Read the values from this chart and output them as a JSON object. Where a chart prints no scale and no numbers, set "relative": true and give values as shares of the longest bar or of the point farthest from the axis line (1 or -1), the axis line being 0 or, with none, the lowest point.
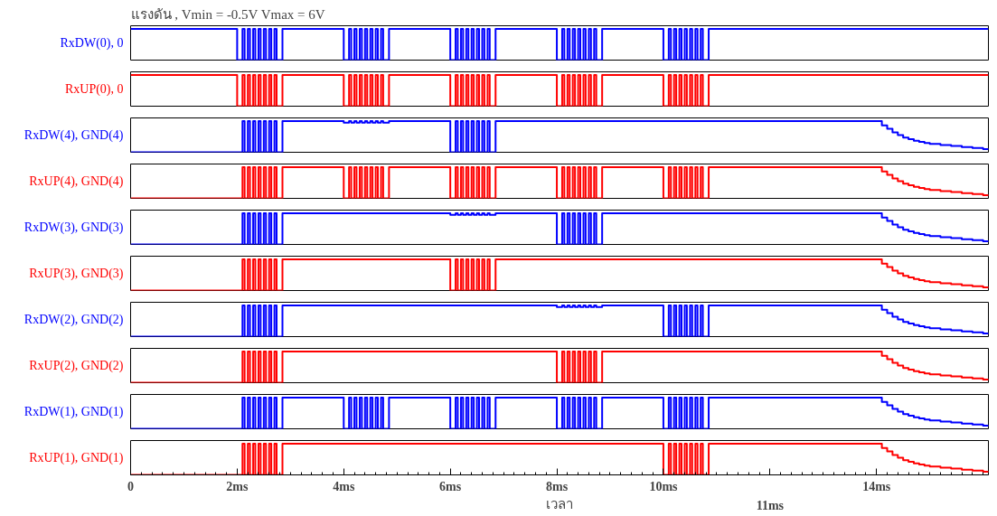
{
  "chart_data": [
    {
      "type": "step",
      "title": "แรงดัน , Vmin = -0.5V  Vmax = 6V",
      "relative": true,
      "xlim": [
        0,
        16.1
      ],
      "tick_labels": false,
      "grid": false,
      "line_style": "solid",
      "marker": "none",
      "series": [
        {
          "name": "RxDW(0), 0",
          "color": "#0000ff",
          "x": [
            0,
            2,
            2.1,
            2.14,
            2.2,
            2.24,
            2.3,
            2.34,
            2.4,
            2.44,
            2.5,
            2.54,
            2.6,
            2.64,
            2.7,
            2.74,
            2.85,
            4,
            4.1,
            4.14,
            4.2,
            4.24,
            4.3,
            4.34,
            4.4,
            4.44,
            4.5,
            4.54,
            4.6,
            4.64,
            4.7,
            4.74,
            4.85,
            6,
            6.1,
            6.14,
            6.2,
            6.24,
            6.3,
            6.34,
            6.4,
            6.44,
            6.5,
            6.54,
            6.6,
            6.64,
            6.7,
            6.74,
            6.85,
            8,
            8.1,
            8.14,
            8.2,
            8.24,
            8.3,
            8.34,
            8.4,
            8.44,
            8.5,
            8.54,
            8.6,
            8.64,
            8.7,
            8.74,
            8.85,
            10,
            10.1,
            10.14,
            10.2,
            10.24,
            10.3,
            10.34,
            10.4,
            10.44,
            10.5,
            10.54,
            10.6,
            10.64,
            10.7,
            10.74,
            10.85,
            16.1
          ],
          "values": [
            1,
            0,
            1,
            0,
            1,
            0,
            1,
            0,
            1,
            0,
            1,
            0,
            1,
            0,
            1,
            0,
            1,
            0,
            1,
            0,
            1,
            0,
            1,
            0,
            1,
            0,
            1,
            0,
            1,
            0,
            1,
            0,
            1,
            0,
            1,
            0,
            1,
            0,
            1,
            0,
            1,
            0,
            1,
            0,
            1,
            0,
            1,
            0,
            1,
            0,
            1,
            0,
            1,
            0,
            1,
            0,
            1,
            0,
            1,
            0,
            1,
            0,
            1,
            0,
            1,
            0,
            1,
            0,
            1,
            0,
            1,
            0,
            1,
            0,
            1,
            0,
            1,
            0,
            1,
            0,
            1,
            1
          ]
        }
      ]
    },
    {
      "type": "step",
      "relative": true,
      "xlim": [
        0,
        16.1
      ],
      "tick_labels": false,
      "grid": false,
      "line_style": "solid",
      "marker": "none",
      "series": [
        {
          "name": "RxUP(0), 0",
          "color": "#ff0000",
          "x": [
            0,
            2,
            2.1,
            2.14,
            2.2,
            2.24,
            2.3,
            2.34,
            2.4,
            2.44,
            2.5,
            2.54,
            2.6,
            2.64,
            2.7,
            2.74,
            2.85,
            4,
            4.1,
            4.14,
            4.2,
            4.24,
            4.3,
            4.34,
            4.4,
            4.44,
            4.5,
            4.54,
            4.6,
            4.64,
            4.7,
            4.74,
            4.85,
            6,
            6.1,
            6.14,
            6.2,
            6.24,
            6.3,
            6.34,
            6.4,
            6.44,
            6.5,
            6.54,
            6.6,
            6.64,
            6.7,
            6.74,
            6.85,
            8,
            8.1,
            8.14,
            8.2,
            8.24,
            8.3,
            8.34,
            8.4,
            8.44,
            8.5,
            8.54,
            8.6,
            8.64,
            8.7,
            8.74,
            8.85,
            10,
            10.1,
            10.14,
            10.2,
            10.24,
            10.3,
            10.34,
            10.4,
            10.44,
            10.5,
            10.54,
            10.6,
            10.64,
            10.7,
            10.74,
            10.85,
            16.1
          ],
          "values": [
            1,
            0,
            1,
            0,
            1,
            0,
            1,
            0,
            1,
            0,
            1,
            0,
            1,
            0,
            1,
            0,
            1,
            0,
            1,
            0,
            1,
            0,
            1,
            0,
            1,
            0,
            1,
            0,
            1,
            0,
            1,
            0,
            1,
            0,
            1,
            0,
            1,
            0,
            1,
            0,
            1,
            0,
            1,
            0,
            1,
            0,
            1,
            0,
            1,
            0,
            1,
            0,
            1,
            0,
            1,
            0,
            1,
            0,
            1,
            0,
            1,
            0,
            1,
            0,
            1,
            0,
            1,
            0,
            1,
            0,
            1,
            0,
            1,
            0,
            1,
            0,
            1,
            0,
            1,
            0,
            1,
            1
          ]
        }
      ]
    },
    {
      "type": "step",
      "relative": true,
      "xlim": [
        0,
        16.1
      ],
      "tick_labels": false,
      "grid": false,
      "line_style": "solid",
      "marker": "none",
      "series": [
        {
          "name": "RxDW(4), GND(4)",
          "color": "#0000ff",
          "x": [
            0,
            2,
            2.1,
            2.14,
            2.2,
            2.24,
            2.3,
            2.34,
            2.4,
            2.44,
            2.5,
            2.54,
            2.6,
            2.64,
            2.7,
            2.74,
            2.85,
            4,
            4.1,
            4.14,
            4.2,
            4.24,
            4.3,
            4.34,
            4.4,
            4.44,
            4.5,
            4.54,
            4.6,
            4.64,
            4.7,
            4.74,
            4.85,
            6,
            6.1,
            6.14,
            6.2,
            6.24,
            6.3,
            6.34,
            6.4,
            6.44,
            6.5,
            6.54,
            6.6,
            6.64,
            6.7,
            6.74,
            6.85,
            14,
            14.1,
            14.2,
            14.3,
            14.4,
            14.5,
            14.6,
            14.7,
            14.8,
            14.9,
            15,
            15.2,
            15.4,
            15.6,
            15.8,
            16,
            16.1
          ],
          "values": [
            0,
            0,
            1,
            0,
            1,
            0,
            1,
            0,
            1,
            0,
            1,
            0,
            1,
            0,
            1,
            0,
            1,
            0.95,
            1,
            0.95,
            1,
            0.95,
            1,
            0.95,
            1,
            0.95,
            1,
            0.95,
            1,
            0.95,
            1,
            0.95,
            1,
            0,
            1,
            0,
            1,
            0,
            1,
            0,
            1,
            0,
            1,
            0,
            1,
            0,
            1,
            0,
            1,
            1,
            0.86,
            0.75,
            0.64,
            0.55,
            0.47,
            0.42,
            0.37,
            0.33,
            0.3,
            0.27,
            0.23,
            0.2,
            0.17,
            0.14,
            0.1,
            0.09
          ]
        }
      ]
    },
    {
      "type": "step",
      "relative": true,
      "xlim": [
        0,
        16.1
      ],
      "tick_labels": false,
      "grid": false,
      "line_style": "solid",
      "marker": "none",
      "series": [
        {
          "name": "RxUP(4), GND(4)",
          "color": "#ff0000",
          "x": [
            0,
            2,
            2.1,
            2.14,
            2.2,
            2.24,
            2.3,
            2.34,
            2.4,
            2.44,
            2.5,
            2.54,
            2.6,
            2.64,
            2.7,
            2.74,
            2.85,
            4,
            4.1,
            4.14,
            4.2,
            4.24,
            4.3,
            4.34,
            4.4,
            4.44,
            4.5,
            4.54,
            4.6,
            4.64,
            4.7,
            4.74,
            4.85,
            6,
            6.1,
            6.14,
            6.2,
            6.24,
            6.3,
            6.34,
            6.4,
            6.44,
            6.5,
            6.54,
            6.6,
            6.64,
            6.7,
            6.74,
            6.85,
            8,
            8.1,
            8.14,
            8.2,
            8.24,
            8.3,
            8.34,
            8.4,
            8.44,
            8.5,
            8.54,
            8.6,
            8.64,
            8.7,
            8.74,
            8.85,
            10,
            10.1,
            10.14,
            10.2,
            10.24,
            10.3,
            10.34,
            10.4,
            10.44,
            10.5,
            10.54,
            10.6,
            10.64,
            10.7,
            10.74,
            10.85,
            14,
            14.1,
            14.2,
            14.3,
            14.4,
            14.5,
            14.6,
            14.7,
            14.8,
            14.9,
            15,
            15.2,
            15.4,
            15.6,
            15.8,
            16,
            16.1
          ],
          "values": [
            0,
            0,
            1,
            0,
            1,
            0,
            1,
            0,
            1,
            0,
            1,
            0,
            1,
            0,
            1,
            0,
            1,
            0,
            1,
            0,
            1,
            0,
            1,
            0,
            1,
            0,
            1,
            0,
            1,
            0,
            1,
            0,
            1,
            0,
            1,
            0,
            1,
            0,
            1,
            0,
            1,
            0,
            1,
            0,
            1,
            0,
            1,
            0,
            1,
            0,
            1,
            0,
            1,
            0,
            1,
            0,
            1,
            0,
            1,
            0,
            1,
            0,
            1,
            0,
            1,
            0,
            1,
            0,
            1,
            0,
            1,
            0,
            1,
            0,
            1,
            0,
            1,
            0,
            1,
            0,
            1,
            1,
            0.86,
            0.75,
            0.64,
            0.55,
            0.47,
            0.42,
            0.37,
            0.33,
            0.3,
            0.27,
            0.23,
            0.2,
            0.17,
            0.14,
            0.1,
            0.09
          ]
        }
      ]
    },
    {
      "type": "step",
      "relative": true,
      "xlim": [
        0,
        16.1
      ],
      "tick_labels": false,
      "grid": false,
      "line_style": "solid",
      "marker": "none",
      "series": [
        {
          "name": "RxDW(3), GND(3)",
          "color": "#0000ff",
          "x": [
            0,
            2,
            2.1,
            2.14,
            2.2,
            2.24,
            2.3,
            2.34,
            2.4,
            2.44,
            2.5,
            2.54,
            2.6,
            2.64,
            2.7,
            2.74,
            2.85,
            6,
            6.1,
            6.14,
            6.2,
            6.24,
            6.3,
            6.34,
            6.4,
            6.44,
            6.5,
            6.54,
            6.6,
            6.64,
            6.7,
            6.74,
            6.85,
            8,
            8.1,
            8.14,
            8.2,
            8.24,
            8.3,
            8.34,
            8.4,
            8.44,
            8.5,
            8.54,
            8.6,
            8.64,
            8.7,
            8.74,
            8.85,
            14,
            14.1,
            14.2,
            14.3,
            14.4,
            14.5,
            14.6,
            14.7,
            14.8,
            14.9,
            15,
            15.2,
            15.4,
            15.6,
            15.8,
            16,
            16.1
          ],
          "values": [
            0,
            0,
            1,
            0,
            1,
            0,
            1,
            0,
            1,
            0,
            1,
            0,
            1,
            0,
            1,
            0,
            1,
            0.95,
            1,
            0.95,
            1,
            0.95,
            1,
            0.95,
            1,
            0.95,
            1,
            0.95,
            1,
            0.95,
            1,
            0.95,
            1,
            0,
            1,
            0,
            1,
            0,
            1,
            0,
            1,
            0,
            1,
            0,
            1,
            0,
            1,
            0,
            1,
            1,
            0.86,
            0.75,
            0.64,
            0.55,
            0.47,
            0.42,
            0.37,
            0.33,
            0.3,
            0.27,
            0.23,
            0.2,
            0.17,
            0.14,
            0.1,
            0.09
          ]
        }
      ]
    },
    {
      "type": "step",
      "relative": true,
      "xlim": [
        0,
        16.1
      ],
      "tick_labels": false,
      "grid": false,
      "line_style": "solid",
      "marker": "none",
      "series": [
        {
          "name": "RxUP(3), GND(3)",
          "color": "#ff0000",
          "x": [
            0,
            2,
            2.1,
            2.14,
            2.2,
            2.24,
            2.3,
            2.34,
            2.4,
            2.44,
            2.5,
            2.54,
            2.6,
            2.64,
            2.7,
            2.74,
            2.85,
            6,
            6.1,
            6.14,
            6.2,
            6.24,
            6.3,
            6.34,
            6.4,
            6.44,
            6.5,
            6.54,
            6.6,
            6.64,
            6.7,
            6.74,
            6.85,
            14,
            14.1,
            14.2,
            14.3,
            14.4,
            14.5,
            14.6,
            14.7,
            14.8,
            14.9,
            15,
            15.2,
            15.4,
            15.6,
            15.8,
            16,
            16.1
          ],
          "values": [
            0,
            0,
            1,
            0,
            1,
            0,
            1,
            0,
            1,
            0,
            1,
            0,
            1,
            0,
            1,
            0,
            1,
            0,
            1,
            0,
            1,
            0,
            1,
            0,
            1,
            0,
            1,
            0,
            1,
            0,
            1,
            0,
            1,
            1,
            0.86,
            0.75,
            0.64,
            0.55,
            0.47,
            0.42,
            0.37,
            0.33,
            0.3,
            0.27,
            0.23,
            0.2,
            0.17,
            0.14,
            0.1,
            0.09
          ]
        }
      ]
    },
    {
      "type": "step",
      "relative": true,
      "xlim": [
        0,
        16.1
      ],
      "tick_labels": false,
      "grid": false,
      "line_style": "solid",
      "marker": "none",
      "series": [
        {
          "name": "RxDW(2), GND(2)",
          "color": "#0000ff",
          "x": [
            0,
            2,
            2.1,
            2.14,
            2.2,
            2.24,
            2.3,
            2.34,
            2.4,
            2.44,
            2.5,
            2.54,
            2.6,
            2.64,
            2.7,
            2.74,
            2.85,
            8,
            8.1,
            8.14,
            8.2,
            8.24,
            8.3,
            8.34,
            8.4,
            8.44,
            8.5,
            8.54,
            8.6,
            8.64,
            8.7,
            8.74,
            8.85,
            10,
            10.1,
            10.14,
            10.2,
            10.24,
            10.3,
            10.34,
            10.4,
            10.44,
            10.5,
            10.54,
            10.6,
            10.64,
            10.7,
            10.74,
            10.85,
            14,
            14.1,
            14.2,
            14.3,
            14.4,
            14.5,
            14.6,
            14.7,
            14.8,
            14.9,
            15,
            15.2,
            15.4,
            15.6,
            15.8,
            16,
            16.1
          ],
          "values": [
            0,
            0,
            1,
            0,
            1,
            0,
            1,
            0,
            1,
            0,
            1,
            0,
            1,
            0,
            1,
            0,
            1,
            0.95,
            1,
            0.95,
            1,
            0.95,
            1,
            0.95,
            1,
            0.95,
            1,
            0.95,
            1,
            0.95,
            1,
            0.95,
            1,
            0,
            1,
            0,
            1,
            0,
            1,
            0,
            1,
            0,
            1,
            0,
            1,
            0,
            1,
            0,
            1,
            1,
            0.86,
            0.75,
            0.64,
            0.55,
            0.47,
            0.42,
            0.37,
            0.33,
            0.3,
            0.27,
            0.23,
            0.2,
            0.17,
            0.14,
            0.1,
            0.09
          ]
        }
      ]
    },
    {
      "type": "step",
      "relative": true,
      "xlim": [
        0,
        16.1
      ],
      "tick_labels": false,
      "grid": false,
      "line_style": "solid",
      "marker": "none",
      "series": [
        {
          "name": "RxUP(2), GND(2)",
          "color": "#ff0000",
          "x": [
            0,
            2,
            2.1,
            2.14,
            2.2,
            2.24,
            2.3,
            2.34,
            2.4,
            2.44,
            2.5,
            2.54,
            2.6,
            2.64,
            2.7,
            2.74,
            2.85,
            8,
            8.1,
            8.14,
            8.2,
            8.24,
            8.3,
            8.34,
            8.4,
            8.44,
            8.5,
            8.54,
            8.6,
            8.64,
            8.7,
            8.74,
            8.85,
            14,
            14.1,
            14.2,
            14.3,
            14.4,
            14.5,
            14.6,
            14.7,
            14.8,
            14.9,
            15,
            15.2,
            15.4,
            15.6,
            15.8,
            16,
            16.1
          ],
          "values": [
            0,
            0,
            1,
            0,
            1,
            0,
            1,
            0,
            1,
            0,
            1,
            0,
            1,
            0,
            1,
            0,
            1,
            0,
            1,
            0,
            1,
            0,
            1,
            0,
            1,
            0,
            1,
            0,
            1,
            0,
            1,
            0,
            1,
            1,
            0.86,
            0.75,
            0.64,
            0.55,
            0.47,
            0.42,
            0.37,
            0.33,
            0.3,
            0.27,
            0.23,
            0.2,
            0.17,
            0.14,
            0.1,
            0.09
          ]
        }
      ]
    },
    {
      "type": "step",
      "relative": true,
      "xlim": [
        0,
        16.1
      ],
      "tick_labels": false,
      "grid": false,
      "line_style": "solid",
      "marker": "none",
      "series": [
        {
          "name": "RxDW(1), GND(1)",
          "color": "#0000ff",
          "x": [
            0,
            2,
            2.1,
            2.14,
            2.2,
            2.24,
            2.3,
            2.34,
            2.4,
            2.44,
            2.5,
            2.54,
            2.6,
            2.64,
            2.7,
            2.74,
            2.85,
            4,
            4.1,
            4.14,
            4.2,
            4.24,
            4.3,
            4.34,
            4.4,
            4.44,
            4.5,
            4.54,
            4.6,
            4.64,
            4.7,
            4.74,
            4.85,
            6,
            6.1,
            6.14,
            6.2,
            6.24,
            6.3,
            6.34,
            6.4,
            6.44,
            6.5,
            6.54,
            6.6,
            6.64,
            6.7,
            6.74,
            6.85,
            8,
            8.1,
            8.14,
            8.2,
            8.24,
            8.3,
            8.34,
            8.4,
            8.44,
            8.5,
            8.54,
            8.6,
            8.64,
            8.7,
            8.74,
            8.85,
            10,
            10.1,
            10.14,
            10.2,
            10.24,
            10.3,
            10.34,
            10.4,
            10.44,
            10.5,
            10.54,
            10.6,
            10.64,
            10.7,
            10.74,
            10.85,
            14,
            14.1,
            14.2,
            14.3,
            14.4,
            14.5,
            14.6,
            14.7,
            14.8,
            14.9,
            15,
            15.2,
            15.4,
            15.6,
            15.8,
            16,
            16.1
          ],
          "values": [
            0,
            0,
            1,
            0,
            1,
            0,
            1,
            0,
            1,
            0,
            1,
            0,
            1,
            0,
            1,
            0,
            1,
            0,
            1,
            0,
            1,
            0,
            1,
            0,
            1,
            0,
            1,
            0,
            1,
            0,
            1,
            0,
            1,
            0,
            1,
            0,
            1,
            0,
            1,
            0,
            1,
            0,
            1,
            0,
            1,
            0,
            1,
            0,
            1,
            0,
            1,
            0,
            1,
            0,
            1,
            0,
            1,
            0,
            1,
            0,
            1,
            0,
            1,
            0,
            1,
            0,
            1,
            0,
            1,
            0,
            1,
            0,
            1,
            0,
            1,
            0,
            1,
            0,
            1,
            0,
            1,
            1,
            0.86,
            0.75,
            0.64,
            0.55,
            0.47,
            0.42,
            0.37,
            0.33,
            0.3,
            0.27,
            0.23,
            0.2,
            0.17,
            0.14,
            0.1,
            0.09
          ]
        }
      ]
    },
    {
      "type": "step",
      "relative": true,
      "xlim": [
        0,
        16.1
      ],
      "tick_labels": "x",
      "xlabel": "เวลา",
      "annotations": [
        "11ms"
      ],
      "grid": false,
      "line_style": "solid",
      "marker": "none",
      "xticks": [
        0,
        {
          "value": 2,
          "label": "2ms"
        },
        {
          "value": 4,
          "label": "4ms"
        },
        {
          "value": 6,
          "label": "6ms"
        },
        {
          "value": 8,
          "label": "8ms"
        },
        {
          "value": 10,
          "label": "10ms"
        },
        {
          "value": 12,
          "label": null
        },
        {
          "value": 14,
          "label": "14ms"
        }
      ],
      "series": [
        {
          "name": "RxUP(1), GND(1)",
          "color": "#ff0000",
          "x": [
            0,
            2,
            2.1,
            2.14,
            2.2,
            2.24,
            2.3,
            2.34,
            2.4,
            2.44,
            2.5,
            2.54,
            2.6,
            2.64,
            2.7,
            2.74,
            2.85,
            10,
            10.1,
            10.14,
            10.2,
            10.24,
            10.3,
            10.34,
            10.4,
            10.44,
            10.5,
            10.54,
            10.6,
            10.64,
            10.7,
            10.74,
            10.85,
            14,
            14.1,
            14.2,
            14.3,
            14.4,
            14.5,
            14.6,
            14.7,
            14.8,
            14.9,
            15,
            15.2,
            15.4,
            15.6,
            15.8,
            16,
            16.1
          ],
          "values": [
            0,
            0,
            1,
            0,
            1,
            0,
            1,
            0,
            1,
            0,
            1,
            0,
            1,
            0,
            1,
            0,
            1,
            0,
            1,
            0,
            1,
            0,
            1,
            0,
            1,
            0,
            1,
            0,
            1,
            0,
            1,
            0,
            1,
            1,
            0.86,
            0.75,
            0.64,
            0.55,
            0.47,
            0.42,
            0.37,
            0.33,
            0.3,
            0.27,
            0.23,
            0.2,
            0.17,
            0.14,
            0.1,
            0.09
          ]
        }
      ]
    }
  ]
}
